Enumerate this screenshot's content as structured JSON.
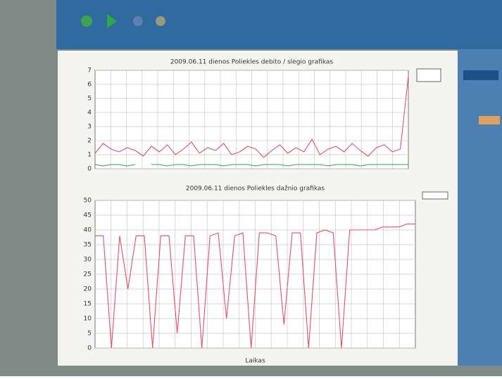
{
  "chart_data": [
    {
      "type": "line",
      "title": "2009.06.11 dienos Poliekles debito / slėgio grafikas",
      "ylim": [
        0,
        7
      ],
      "yticks": [
        0,
        1,
        2,
        3,
        4,
        5,
        6,
        7
      ],
      "grid": true,
      "series": [
        {
          "color": "#e0506a",
          "values": [
            1.1,
            1.8,
            1.4,
            1.2,
            1.5,
            1.3,
            0.9,
            1.6,
            1.2,
            1.7,
            1.0,
            1.4,
            1.9,
            1.1,
            1.5,
            1.3,
            1.8,
            1.0,
            1.2,
            1.6,
            1.4,
            0.8,
            1.3,
            1.7,
            1.1,
            1.5,
            1.2,
            2.1,
            1.0,
            1.4,
            1.6,
            1.2,
            1.8,
            1.3,
            0.9,
            1.5,
            1.7,
            1.2,
            1.4,
            6.6
          ]
        },
        {
          "color": "#3a9a5a",
          "values": [
            0.3,
            0.2,
            0.3,
            0.3,
            0.2,
            0.3,
            null,
            0.3,
            0.3,
            0.2,
            0.3,
            0.3,
            0.2,
            0.3,
            0.3,
            0.3,
            0.2,
            0.3,
            0.3,
            0.3,
            0.2,
            0.3,
            0.3,
            0.3,
            0.2,
            0.3,
            0.3,
            0.3,
            0.3,
            0.2,
            0.3,
            0.3,
            0.3,
            0.2,
            0.3,
            0.3,
            0.3,
            0.3,
            0.3,
            0.3
          ]
        }
      ]
    },
    {
      "type": "line",
      "title": "2009.06.11 dienos Poliekles dažnio grafikas",
      "x_label": "Laikas",
      "ylim": [
        0,
        50
      ],
      "yticks": [
        0,
        5,
        10,
        15,
        20,
        25,
        30,
        35,
        40,
        45,
        50
      ],
      "grid": true,
      "series": [
        {
          "color": "#e0506a",
          "values": [
            38,
            38,
            0,
            38,
            20,
            38,
            38,
            0,
            38,
            38,
            5,
            38,
            38,
            0,
            38,
            39,
            10,
            38,
            39,
            0,
            39,
            39,
            38,
            8,
            39,
            39,
            0,
            39,
            40,
            39,
            0,
            40,
            40,
            40,
            40,
            41,
            41,
            41,
            42,
            42
          ]
        }
      ]
    }
  ]
}
